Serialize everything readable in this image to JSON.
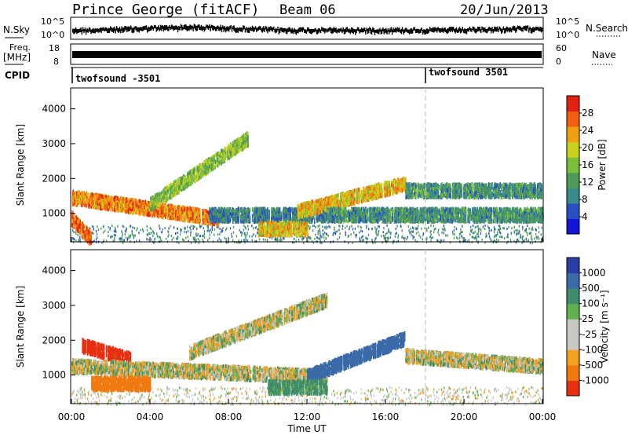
{
  "header": {
    "station": "Prince George (fitACF)",
    "beam": "Beam 06",
    "date": "20/Jun/2013"
  },
  "noise_panel": {
    "left_label": "N.Sky",
    "right_label": "N.Search",
    "left_ticks": [
      "10^5",
      "10^0"
    ],
    "right_ticks": [
      "10^5",
      "10^0"
    ]
  },
  "freq_panel": {
    "left_label_1": "Freq.",
    "left_label_2": "[MHz]",
    "right_label": "Nave",
    "left_ticks": [
      "18",
      "8"
    ],
    "right_ticks": [
      "60",
      "0"
    ]
  },
  "cpid_panel": {
    "label": "CPID",
    "segments": [
      {
        "name": "twofsound -3501",
        "start_hour": 0
      },
      {
        "name": "twofsound 3501",
        "start_hour": 18
      }
    ]
  },
  "power_panel": {
    "ylabel": "Slant Range [km]",
    "yticks": [
      "4000",
      "3000",
      "2000",
      "1000"
    ],
    "colorbar_label": "Power [dB]",
    "colorbar_ticks": [
      "28",
      "24",
      "20",
      "16",
      "12",
      "8",
      "4"
    ]
  },
  "velocity_panel": {
    "ylabel": "Slant Range [km]",
    "yticks": [
      "4000",
      "3000",
      "2000",
      "1000"
    ],
    "colorbar_label": "Velocity [m s⁻¹]",
    "colorbar_ticks": [
      "1000",
      "500",
      "100",
      "25",
      "-25",
      "-100",
      "-500",
      "-1000"
    ]
  },
  "xaxis": {
    "label": "Time UT",
    "ticks": [
      "00:00",
      "04:00",
      "08:00",
      "12:00",
      "16:00",
      "20:00",
      "00:00"
    ]
  },
  "colors": {
    "power_scale": [
      "#1414d8",
      "#2a4fc0",
      "#3a8c8c",
      "#4f9a55",
      "#7bc03a",
      "#c8d21e",
      "#f0a010",
      "#f06010",
      "#e02010"
    ],
    "velocity_scale": [
      "#2a3ea8",
      "#3a6aa8",
      "#3f8c6c",
      "#62b050",
      "#c8c8c4",
      "#c8c8c4",
      "#f5a020",
      "#f07a10",
      "#e83010"
    ]
  },
  "chart_data": [
    {
      "type": "heatmap",
      "title": "Power",
      "x_range_hours": [
        0,
        24
      ],
      "y_range_km": [
        180,
        4600
      ],
      "description_bands_only": true,
      "bands": [
        {
          "x_start": 0.0,
          "x_end": 7.5,
          "y_start": 1500,
          "y_end": 900,
          "value_db": 26
        },
        {
          "x_start": 0.0,
          "x_end": 1.0,
          "y_start": 900,
          "y_end": 300,
          "value_db": 28
        },
        {
          "x_start": 4.0,
          "x_end": 9.0,
          "y_start": 1300,
          "y_end": 3200,
          "value_db": 16
        },
        {
          "x_start": 7.0,
          "x_end": 13.0,
          "y_start": 1000,
          "y_end": 1000,
          "value_db": 8
        },
        {
          "x_start": 11.5,
          "x_end": 17.0,
          "y_start": 1100,
          "y_end": 1900,
          "value_db": 22
        },
        {
          "x_start": 9.5,
          "x_end": 12.0,
          "y_start": 600,
          "y_end": 600,
          "value_db": 22
        },
        {
          "x_start": 13.0,
          "x_end": 24.0,
          "y_start": 1000,
          "y_end": 1000,
          "value_db": 10
        },
        {
          "x_start": 17.0,
          "x_end": 24.0,
          "y_start": 1700,
          "y_end": 1700,
          "value_db": 10
        }
      ]
    },
    {
      "type": "heatmap",
      "title": "Velocity",
      "x_range_hours": [
        0,
        24
      ],
      "y_range_km": [
        180,
        4600
      ],
      "bands": [
        {
          "x_start": 0.5,
          "x_end": 3.0,
          "y_start": 1900,
          "y_end": 1500,
          "value_ms": -900
        },
        {
          "x_start": 0.0,
          "x_end": 13.0,
          "y_start": 1300,
          "y_end": 1000,
          "value_ms": 0
        },
        {
          "x_start": 6.0,
          "x_end": 13.0,
          "y_start": 1700,
          "y_end": 3200,
          "value_ms": 0
        },
        {
          "x_start": 12.0,
          "x_end": 17.0,
          "y_start": 1000,
          "y_end": 2100,
          "value_ms": 400
        },
        {
          "x_start": 10.0,
          "x_end": 13.0,
          "y_start": 700,
          "y_end": 700,
          "value_ms": 120
        },
        {
          "x_start": 1.0,
          "x_end": 4.0,
          "y_start": 800,
          "y_end": 800,
          "value_ms": -400
        },
        {
          "x_start": 17.0,
          "x_end": 24.0,
          "y_start": 1600,
          "y_end": 1300,
          "value_ms": 0
        }
      ]
    }
  ]
}
